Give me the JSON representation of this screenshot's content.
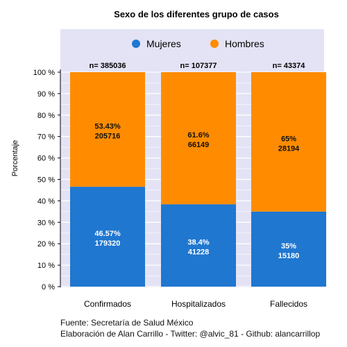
{
  "chart_data": {
    "type": "bar",
    "stacked": true,
    "title": "Sexo de los diferentes grupo de casos",
    "ylabel": "Porcentaje",
    "xlabel": "",
    "ylim": [
      0,
      100
    ],
    "yticks": [
      "0 %",
      "10 %",
      "20 %",
      "30 %",
      "40 %",
      "50 %",
      "60 %",
      "70 %",
      "80 %",
      "90 %",
      "100 %"
    ],
    "legend_position": "top",
    "categories": [
      "Confirmados",
      "Hospitalizados",
      "Fallecidos"
    ],
    "totals": [
      "n= 385036",
      "n= 107377",
      "n= 43374"
    ],
    "series": [
      {
        "name": "Mujeres",
        "color": "#1f77d0",
        "values": [
          46.57,
          38.4,
          35
        ],
        "value_labels": [
          "46.57%",
          "38.4%",
          "35%"
        ],
        "counts": [
          "179320",
          "41228",
          "15180"
        ]
      },
      {
        "name": "Hombres",
        "color": "#ff8c00",
        "values": [
          53.43,
          61.6,
          65
        ],
        "value_labels": [
          "53.43%",
          "61.6%",
          "65%"
        ],
        "counts": [
          "205716",
          "66149",
          "28194"
        ]
      }
    ],
    "grid": true,
    "panel_color": "#e3e3f5"
  },
  "caption": {
    "line1": "Fuente: Secretaría de Salud México",
    "line2": "Elaboración de Alan Carrillo - Twitter: @alvic_81 - Github: alancarrillop"
  }
}
